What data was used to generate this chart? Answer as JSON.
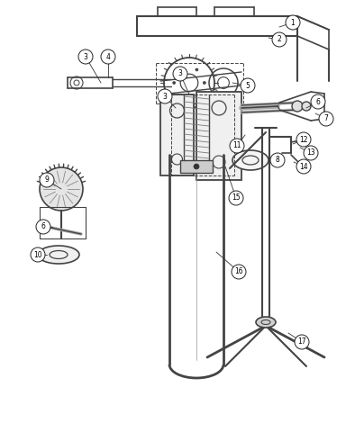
{
  "background_color": "#ffffff",
  "line_color": "#444444",
  "fig_width": 3.94,
  "fig_height": 4.8,
  "dpi": 100
}
